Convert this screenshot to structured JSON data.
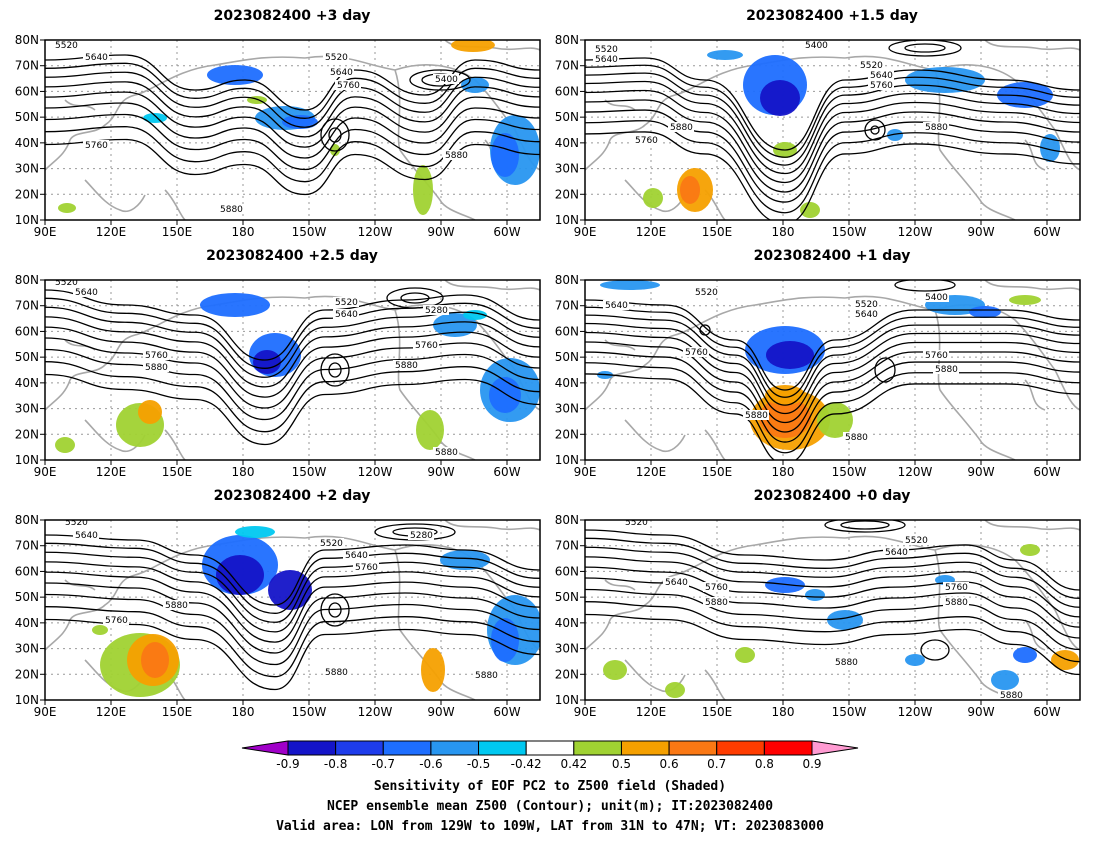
{
  "panels": [
    {
      "title": "2023082400  +3 day",
      "contour_labels": [
        "5520",
        "5640",
        "5520",
        "5640",
        "5760",
        "5400",
        "5760",
        "5880",
        "5880"
      ]
    },
    {
      "title": "2023082400  +1.5 day",
      "contour_labels": [
        "5520",
        "5640",
        "5400",
        "5520",
        "5640",
        "5760",
        "5880",
        "5760",
        "5880"
      ]
    },
    {
      "title": "2023082400  +2.5 day",
      "contour_labels": [
        "5520",
        "5640",
        "5520",
        "5640",
        "5280",
        "5760",
        "5760",
        "5880",
        "5880",
        "5880"
      ]
    },
    {
      "title": "2023082400  +1 day",
      "contour_labels": [
        "5640",
        "5520",
        "5520",
        "5400",
        "5640",
        "5760",
        "5760",
        "5880",
        "5880",
        "5880"
      ]
    },
    {
      "title": "2023082400  +2 day",
      "contour_labels": [
        "5520",
        "5640",
        "5520",
        "5280",
        "5640",
        "5760",
        "5880",
        "5760",
        "5880",
        "5880"
      ]
    },
    {
      "title": "2023082400  +0 day",
      "contour_labels": [
        "5520",
        "5520",
        "5640",
        "5640",
        "5760",
        "5880",
        "5760",
        "5880",
        "5880",
        "5880"
      ]
    }
  ],
  "axes": {
    "lat_labels": [
      "80N",
      "70N",
      "60N",
      "50N",
      "40N",
      "30N",
      "20N",
      "10N"
    ],
    "lon_labels": [
      "90E",
      "120E",
      "150E",
      "180",
      "150W",
      "120W",
      "90W",
      "60W"
    ]
  },
  "colorbar": {
    "ticks": [
      "-0.9",
      "-0.8",
      "-0.7",
      "-0.6",
      "-0.5",
      "-0.42",
      "0.42",
      "0.5",
      "0.6",
      "0.7",
      "0.8",
      "0.9"
    ],
    "colors": [
      "#a000c8",
      "#1414c8",
      "#1e3ceb",
      "#1e6eff",
      "#2896f0",
      "#00c8f0",
      "#ffffff",
      "#a0d232",
      "#f5a000",
      "#fa7814",
      "#ff3c00",
      "#ff0000",
      "#ff9bd2"
    ]
  },
  "shading_colors": {
    "neg_dark": "#1414c8",
    "neg_mid": "#1e6eff",
    "neg_light": "#2896f0",
    "neg_pale": "#00c8f0",
    "pos_light": "#a0d232",
    "pos_mid": "#f5a000",
    "pos_dark": "#fa7814",
    "pos_max": "#ff3c00"
  },
  "caption": {
    "line1": "Sensitivity of EOF PC2 to Z500 field (Shaded)",
    "line2": "NCEP ensemble mean Z500 (Contour); unit(m); IT:2023082400",
    "line3": "Valid area: LON from 129W to 109W, LAT from 31N to 47N; VT: 2023083000"
  }
}
